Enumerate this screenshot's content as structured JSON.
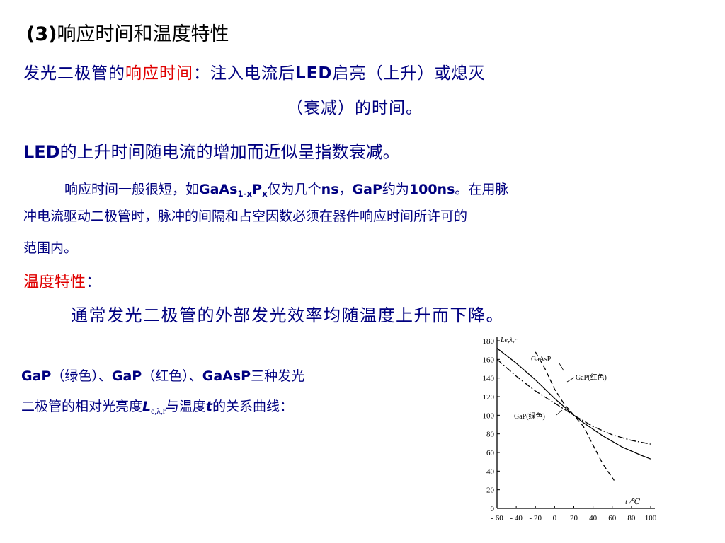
{
  "title": {
    "number": "(3)",
    "text": "响应时间和温度特性"
  },
  "definition": {
    "prefix": "发光二极管的",
    "term": "响应时间",
    "colon": "：",
    "line1_rest": "注入电流后",
    "led": "LED",
    "line1_end": "启亮（上升）或熄灭",
    "line2": "（衰减）的时间。"
  },
  "decay_statement": {
    "led": "LED",
    "text": "的上升时间随电流的增加而近似呈指数衰减。"
  },
  "paragraph": {
    "part1": "响应时间一般很短，如",
    "gaas": "GaAs",
    "sub_1x": "1-x",
    "p": "P",
    "sub_x": "x",
    "part2": "仅为几个",
    "ns": "ns",
    "comma": "，",
    "gap": "GaP",
    "part3": "约为",
    "value": "100ns",
    "part4": "。在用脉",
    "line2": "冲电流驱动二极管时，脉冲的间隔和占空因数必须在器件响应时间所许可的",
    "line3": "范围内。"
  },
  "temperature": {
    "heading": "温度特性",
    "colon": "：",
    "description": "通常发光二极管的外部发光效率均随温度上升而下降。"
  },
  "caption": {
    "gap1": "GaP",
    "green": "（绿色）、",
    "gap2": "GaP",
    "red": "（红色）、",
    "gaasp": "GaAsP",
    "rest1": "三种发光",
    "line2_a": "二极管的相对光亮度",
    "L": "L",
    "L_sub": "e,λ,r",
    "line2_b": "与温度",
    "t": "t",
    "line2_c": "的关系曲线："
  },
  "chart_data": {
    "type": "line",
    "xlabel": "t /℃",
    "ylabel": "Le,λ,r",
    "xlim": [
      -60,
      100
    ],
    "ylim": [
      0,
      180
    ],
    "x_ticks": [
      "- 60",
      "- 40",
      "- 20",
      "0",
      "20",
      "40",
      "60",
      "80",
      "100"
    ],
    "y_ticks": [
      "180",
      "160",
      "140",
      "120",
      "100",
      "80",
      "60",
      "40",
      "20",
      "0"
    ],
    "series": [
      {
        "name": "GaAsP",
        "style": "solid",
        "points": [
          [
            -60,
            172
          ],
          [
            -40,
            156
          ],
          [
            -20,
            138
          ],
          [
            0,
            118
          ],
          [
            20,
            100
          ],
          [
            30,
            92
          ],
          [
            50,
            78
          ],
          [
            70,
            66
          ],
          [
            90,
            57
          ],
          [
            100,
            53
          ]
        ]
      },
      {
        "name": "GaP(红色)",
        "style": "dashed",
        "points": [
          [
            -20,
            168
          ],
          [
            -10,
            150
          ],
          [
            0,
            128
          ],
          [
            10,
            112
          ],
          [
            20,
            100
          ],
          [
            30,
            88
          ],
          [
            40,
            68
          ],
          [
            50,
            48
          ],
          [
            58,
            36
          ],
          [
            62,
            30
          ]
        ]
      },
      {
        "name": "GaP(绿色)",
        "style": "dash-dot",
        "points": [
          [
            -60,
            160
          ],
          [
            -40,
            142
          ],
          [
            -20,
            126
          ],
          [
            0,
            113
          ],
          [
            20,
            100
          ],
          [
            40,
            88
          ],
          [
            60,
            79
          ],
          [
            80,
            73
          ],
          [
            100,
            69
          ]
        ]
      }
    ]
  }
}
